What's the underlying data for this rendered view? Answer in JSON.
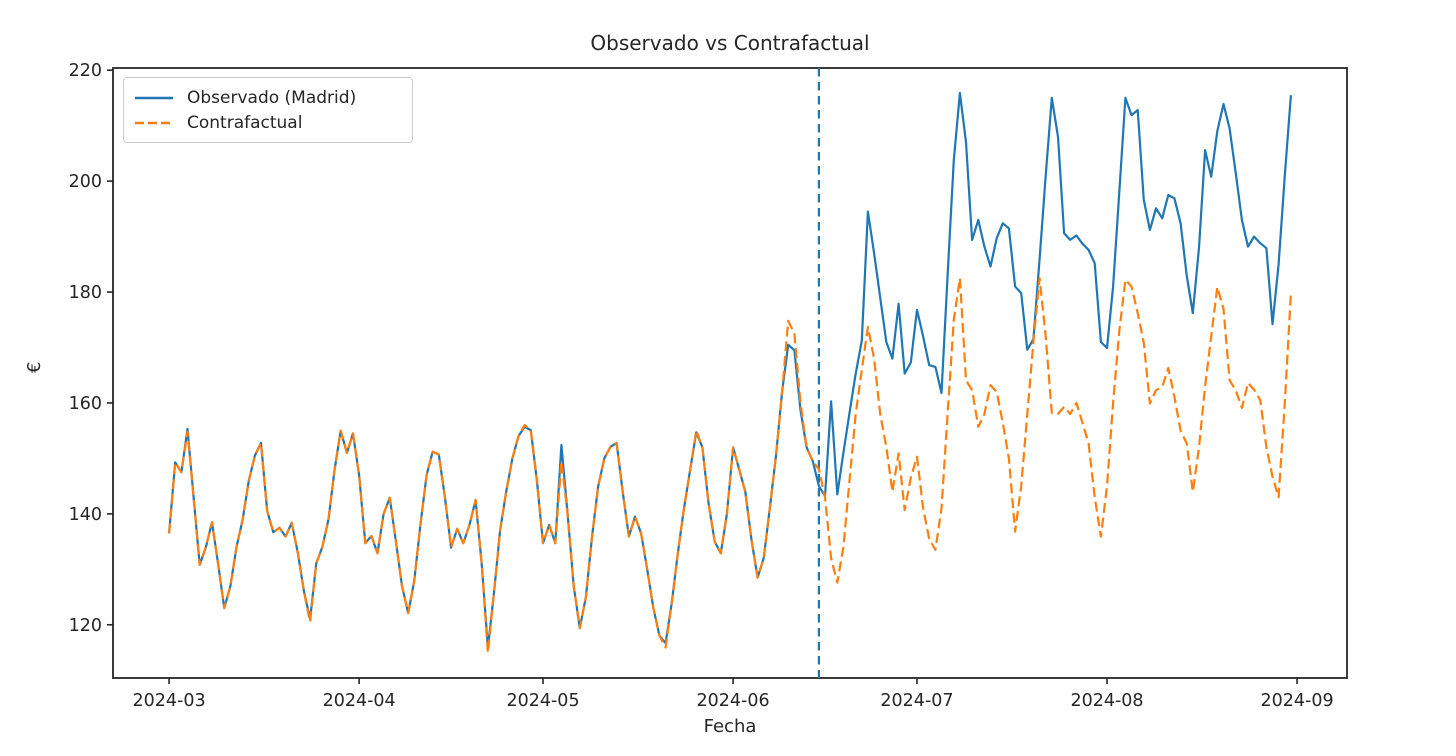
{
  "figure": {
    "title": "Observado vs Contrafactual",
    "xlabel": "Fecha",
    "ylabel": "€"
  },
  "chart_data": {
    "type": "line",
    "title": "Observado vs Contrafactual",
    "xlabel": "Fecha",
    "ylabel": "€",
    "x_start_date": "2024-03-01",
    "x_end_date": "2024-08-31",
    "x_frequency": "daily",
    "grid": false,
    "legend_position": "upper left",
    "ylim": [
      110.4,
      220.4
    ],
    "x_margin_days": 9.15,
    "y_ticks": [
      120,
      140,
      160,
      180,
      200,
      220
    ],
    "x_ticks": [
      {
        "label": "2024-03",
        "day": 0
      },
      {
        "label": "2024-04",
        "day": 31
      },
      {
        "label": "2024-05",
        "day": 61
      },
      {
        "label": "2024-06",
        "day": 92
      },
      {
        "label": "2024-07",
        "day": 122
      },
      {
        "label": "2024-08",
        "day": 153
      },
      {
        "label": "2024-09",
        "day": 184
      }
    ],
    "vline": {
      "date": "2024-06-15",
      "day": 106,
      "color": "#1f77b4",
      "style": "dashed"
    },
    "series": [
      {
        "name": "Observado (Madrid)",
        "color": "#1f77b4",
        "style": "solid",
        "values": [
          136.5,
          149.3,
          147.5,
          155.3,
          143,
          130.8,
          134,
          138.5,
          131,
          123,
          127,
          134,
          139,
          146,
          150.5,
          152.8,
          140.5,
          136.7,
          137.5,
          135.9,
          138.4,
          133,
          126,
          121,
          131,
          134,
          139,
          148,
          155,
          151,
          154.5,
          147,
          134.7,
          136,
          132.9,
          140,
          142.9,
          135,
          127,
          122.1,
          128,
          138,
          147,
          151.2,
          150.7,
          143,
          133.9,
          137.3,
          134.7,
          138,
          142.5,
          131,
          115.9,
          125.8,
          137,
          144,
          150,
          154,
          155.7,
          155.1,
          146,
          134.7,
          138,
          134.7,
          152.4,
          140,
          127,
          119.4,
          125,
          136,
          145,
          150,
          152.1,
          152.8,
          144,
          135.9,
          139.5,
          136.5,
          130,
          123,
          118,
          116.7,
          124,
          133,
          141,
          148,
          154.7,
          152,
          142,
          135,
          132.9,
          140,
          152,
          148,
          144,
          135.3,
          128.5,
          132,
          141,
          150.5,
          162,
          170.5,
          169.5,
          158.7,
          152,
          149.5,
          145,
          143.2,
          160.3,
          143.5,
          151,
          158.2,
          165.3,
          171.2,
          194.5,
          187,
          179,
          171,
          168,
          177.9,
          165.3,
          167.3,
          176.8,
          172,
          166.8,
          166.5,
          161.8,
          183,
          203.8,
          215.9,
          207,
          189.4,
          193,
          188.2,
          184.6,
          189.7,
          192.4,
          191.5,
          181,
          179.8,
          169.6,
          171.5,
          186,
          201,
          215,
          208,
          190.6,
          189.4,
          190.2,
          188.7,
          187.6,
          185.2,
          171,
          169.9,
          181,
          198,
          215,
          211.9,
          212.8,
          196.6,
          191.2,
          195.1,
          193.3,
          197.5,
          196.9,
          192.4,
          183,
          176.2,
          188,
          205.6,
          200.8,
          209,
          213.9,
          209.5,
          201.5,
          193,
          188.2,
          190,
          188.8,
          187.9,
          174.2,
          185,
          201,
          215.5
        ]
      },
      {
        "name": "Contrafactual",
        "color": "#ff7f0e",
        "style": "dashed",
        "values": [
          136.5,
          149.3,
          147.5,
          154.8,
          143,
          130.8,
          134,
          138.5,
          131,
          123,
          127,
          134,
          139,
          146,
          150.5,
          152.8,
          140.5,
          136.7,
          137.5,
          135.9,
          138.4,
          133,
          126,
          120.5,
          131,
          134,
          139,
          148,
          155,
          151,
          154.5,
          147,
          134.7,
          136,
          132.9,
          140,
          142.9,
          135,
          127,
          122.1,
          128,
          138,
          147,
          151.2,
          150.7,
          143,
          133.9,
          137.3,
          134.7,
          138,
          142.5,
          131,
          114.9,
          125.8,
          137,
          144,
          150,
          154,
          156,
          155.1,
          146,
          134.7,
          138,
          134.7,
          149.5,
          140,
          127,
          119.4,
          125,
          136,
          145,
          150,
          152.1,
          152.8,
          144,
          135.9,
          139.5,
          136.5,
          130,
          123,
          118,
          115.9,
          124,
          133,
          141,
          148,
          155,
          152,
          142,
          135,
          132.9,
          140,
          152,
          148,
          144,
          135.3,
          128.5,
          132,
          141,
          150.5,
          162,
          174.8,
          172.5,
          160,
          152,
          149.5,
          148,
          143,
          132,
          127.6,
          134,
          146,
          158,
          166,
          173.7,
          168,
          158,
          152.1,
          144,
          150.9,
          140.7,
          146.5,
          150.3,
          141,
          135.5,
          133.5,
          141,
          158,
          175,
          182.5,
          164.1,
          162.3,
          155.7,
          158,
          163.2,
          162,
          156.4,
          150,
          136.8,
          145,
          158,
          171,
          182.5,
          172,
          158.2,
          158,
          159.3,
          158,
          160,
          156.4,
          152.7,
          143,
          135.9,
          145,
          160,
          173,
          182.2,
          181,
          176.2,
          170.8,
          159.9,
          162.3,
          162.9,
          166.3,
          161.1,
          155,
          152.7,
          144,
          152,
          163,
          172,
          180.9,
          177,
          164.1,
          162.3,
          159.1,
          163.6,
          162.4,
          160.5,
          152,
          146.7,
          143,
          160,
          179.8
        ]
      }
    ]
  }
}
